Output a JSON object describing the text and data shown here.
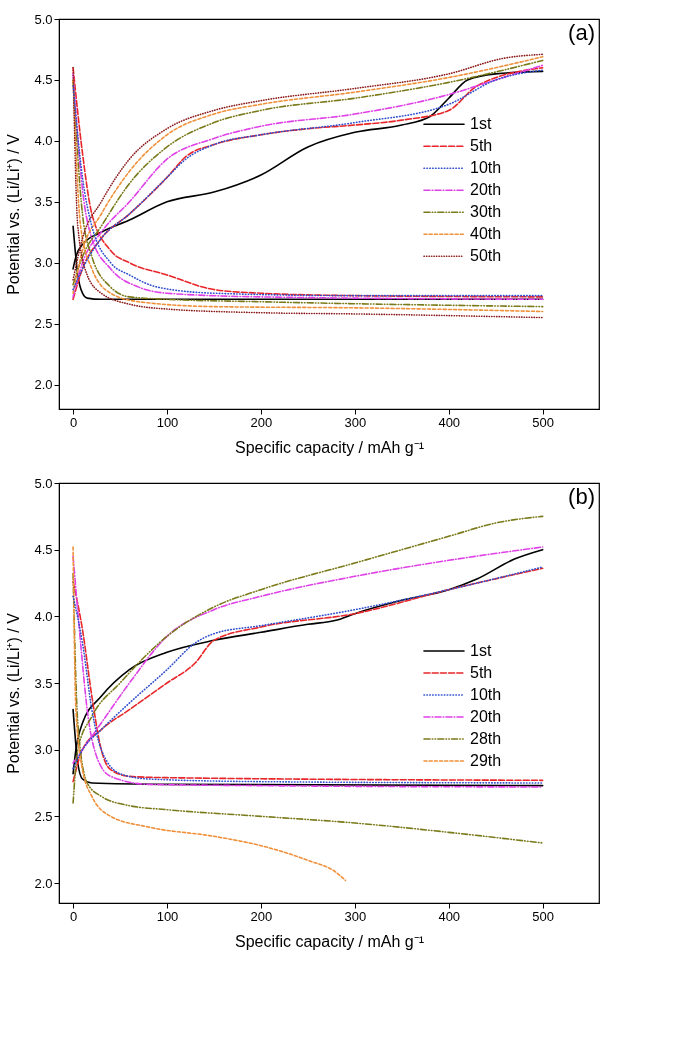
{
  "chart_data": [
    {
      "type": "line",
      "xlabel": "Specific capacity / mAh g⁻¹",
      "ylabel": "Potential vs. (Li/Li⁺) / V",
      "annotations": [
        "(a)"
      ],
      "xlim": [
        -15,
        560
      ],
      "ylim": [
        1.8,
        5.0
      ],
      "xticks": [
        0,
        100,
        200,
        300,
        400,
        500
      ],
      "yticks": [
        {
          "value": 2,
          "label": "2.0"
        },
        2.5,
        {
          "value": 3,
          "label": "3.0"
        },
        3.5,
        {
          "value": 4,
          "label": "4.0"
        },
        4.5,
        {
          "value": 5,
          "label": "5.0"
        }
      ],
      "grid": false,
      "legend": "right",
      "series": [
        {
          "name": "1st",
          "color": "#000000",
          "line_style": "solid",
          "x": [
            0,
            5,
            10,
            15,
            30,
            100,
            500
          ],
          "values": [
            3.3,
            2.9,
            2.75,
            2.71,
            2.7,
            2.7,
            2.7
          ]
        },
        {
          "color": "#000000",
          "line_style": "solid",
          "x": [
            0,
            3,
            10,
            30,
            60,
            100,
            150,
            200,
            250,
            300,
            350,
            380,
            400,
            420,
            450,
            500
          ],
          "values": [
            2.95,
            3.05,
            3.15,
            3.25,
            3.35,
            3.5,
            3.58,
            3.72,
            3.95,
            4.07,
            4.13,
            4.2,
            4.35,
            4.5,
            4.55,
            4.57
          ]
        },
        {
          "name": "5th",
          "color": "#e8262a",
          "line_style": "dashed",
          "x": [
            0,
            10,
            20,
            40,
            60,
            100,
            150,
            200,
            300,
            500
          ],
          "values": [
            4.6,
            3.9,
            3.4,
            3.1,
            3.0,
            2.9,
            2.78,
            2.75,
            2.73,
            2.72
          ]
        },
        {
          "color": "#e8262a",
          "line_style": "dashed",
          "x": [
            0,
            10,
            30,
            60,
            100,
            120,
            150,
            200,
            250,
            300,
            350,
            400,
            430,
            500
          ],
          "values": [
            2.7,
            2.95,
            3.2,
            3.4,
            3.7,
            3.87,
            3.97,
            4.05,
            4.1,
            4.13,
            4.17,
            4.25,
            4.45,
            4.6
          ]
        },
        {
          "name": "10th",
          "color": "#2f4fcf",
          "line_style": "dotted",
          "x": [
            0,
            10,
            20,
            40,
            60,
            90,
            150,
            300,
            500
          ],
          "values": [
            4.45,
            3.7,
            3.3,
            3.0,
            2.9,
            2.8,
            2.75,
            2.73,
            2.73
          ]
        },
        {
          "color": "#2f4fcf",
          "line_style": "dotted",
          "x": [
            0,
            10,
            30,
            60,
            100,
            120,
            150,
            200,
            300,
            400,
            450,
            500
          ],
          "values": [
            2.78,
            2.95,
            3.2,
            3.4,
            3.7,
            3.85,
            3.97,
            4.05,
            4.15,
            4.3,
            4.5,
            4.58
          ]
        },
        {
          "name": "20th",
          "color": "#e040e8",
          "line_style": "dashdot",
          "x": [
            0,
            10,
            20,
            40,
            70,
            100,
            200,
            500
          ],
          "values": [
            4.55,
            3.6,
            3.2,
            2.95,
            2.8,
            2.75,
            2.72,
            2.7
          ]
        },
        {
          "color": "#e040e8",
          "line_style": "dashdot",
          "x": [
            0,
            10,
            30,
            60,
            100,
            150,
            200,
            300,
            400,
            450,
            500
          ],
          "values": [
            2.72,
            3.0,
            3.25,
            3.5,
            3.85,
            4.02,
            4.12,
            4.22,
            4.38,
            4.5,
            4.62
          ]
        },
        {
          "name": "30th",
          "color": "#7a7a1a",
          "line_style": "dashdotdot",
          "x": [
            0,
            10,
            20,
            40,
            60,
            100,
            200,
            500
          ],
          "values": [
            4.5,
            3.4,
            3.05,
            2.8,
            2.72,
            2.7,
            2.68,
            2.64
          ]
        },
        {
          "color": "#7a7a1a",
          "line_style": "dashdotdot",
          "x": [
            0,
            10,
            30,
            60,
            100,
            150,
            200,
            300,
            400,
            500
          ],
          "values": [
            2.82,
            3.05,
            3.3,
            3.65,
            3.95,
            4.15,
            4.25,
            4.35,
            4.48,
            4.66
          ]
        },
        {
          "name": "40th",
          "color": "#f0903a",
          "line_style": "shortdash",
          "x": [
            0,
            8,
            20,
            40,
            70,
            150,
            300,
            500
          ],
          "values": [
            4.5,
            3.3,
            2.95,
            2.75,
            2.68,
            2.64,
            2.63,
            2.6
          ]
        },
        {
          "color": "#f0903a",
          "line_style": "shortdash",
          "x": [
            0,
            10,
            30,
            60,
            100,
            150,
            200,
            300,
            400,
            500
          ],
          "values": [
            2.75,
            3.1,
            3.4,
            3.75,
            4.05,
            4.22,
            4.3,
            4.4,
            4.52,
            4.69
          ]
        },
        {
          "name": "50th",
          "color": "#8b1a1a",
          "line_style": "densedot",
          "x": [
            0,
            5,
            15,
            30,
            60,
            100,
            200,
            300,
            500
          ],
          "values": [
            4.6,
            3.3,
            2.9,
            2.75,
            2.66,
            2.62,
            2.59,
            2.58,
            2.55
          ]
        },
        {
          "color": "#8b1a1a",
          "line_style": "densedot",
          "x": [
            0,
            10,
            30,
            60,
            100,
            150,
            200,
            300,
            400,
            460,
            500
          ],
          "values": [
            2.86,
            3.2,
            3.5,
            3.85,
            4.1,
            4.25,
            4.33,
            4.43,
            4.55,
            4.68,
            4.71
          ]
        }
      ]
    },
    {
      "type": "line",
      "xlabel": "Specific capacity / mAh g⁻¹",
      "ylabel": "Potential vs. (Li/Li⁺) / V",
      "annotations": [
        "(b)"
      ],
      "xlim": [
        -15,
        560
      ],
      "ylim": [
        1.85,
        5.0
      ],
      "xticks": [
        0,
        100,
        200,
        300,
        400,
        500
      ],
      "yticks": [
        {
          "value": 2,
          "label": "2.0"
        },
        2.5,
        {
          "value": 3,
          "label": "3.0"
        },
        3.5,
        {
          "value": 4,
          "label": "4.0"
        },
        4.5,
        {
          "value": 5,
          "label": "5.0"
        }
      ],
      "grid": false,
      "legend": "right",
      "series": [
        {
          "name": "1st",
          "color": "#000000",
          "line_style": "solid",
          "x": [
            0,
            5,
            10,
            20,
            100,
            500
          ],
          "values": [
            3.3,
            2.9,
            2.78,
            2.75,
            2.74,
            2.73
          ]
        },
        {
          "color": "#000000",
          "line_style": "solid",
          "x": [
            0,
            3,
            10,
            30,
            60,
            100,
            150,
            200,
            250,
            280,
            300,
            350,
            400,
            430,
            470,
            500
          ],
          "values": [
            2.82,
            3.0,
            3.2,
            3.4,
            3.6,
            3.73,
            3.82,
            3.88,
            3.94,
            3.97,
            4.02,
            4.12,
            4.2,
            4.28,
            4.43,
            4.5
          ]
        },
        {
          "name": "5th",
          "color": "#e8262a",
          "line_style": "dashed",
          "x": [
            0,
            10,
            20,
            30,
            40,
            60,
            100,
            500
          ],
          "values": [
            4.26,
            3.9,
            3.4,
            3.0,
            2.85,
            2.8,
            2.79,
            2.77
          ]
        },
        {
          "color": "#e8262a",
          "line_style": "dashed",
          "x": [
            0,
            10,
            30,
            60,
            100,
            130,
            150,
            200,
            300,
            400,
            500
          ],
          "values": [
            2.76,
            3.0,
            3.15,
            3.3,
            3.5,
            3.65,
            3.82,
            3.92,
            4.02,
            4.2,
            4.36
          ]
        },
        {
          "name": "10th",
          "color": "#2f4fcf",
          "line_style": "dotted",
          "x": [
            0,
            10,
            20,
            30,
            50,
            80,
            200,
            500
          ],
          "values": [
            4.15,
            3.8,
            3.3,
            3.0,
            2.82,
            2.78,
            2.76,
            2.75
          ]
        },
        {
          "color": "#2f4fcf",
          "line_style": "dotted",
          "x": [
            0,
            10,
            30,
            60,
            100,
            130,
            150,
            200,
            300,
            400,
            500
          ],
          "values": [
            2.86,
            3.0,
            3.15,
            3.35,
            3.6,
            3.8,
            3.87,
            3.93,
            4.05,
            4.2,
            4.37
          ]
        },
        {
          "name": "20th",
          "color": "#e040e8",
          "line_style": "dashdot",
          "x": [
            0,
            8,
            15,
            25,
            40,
            80,
            200,
            500
          ],
          "values": [
            4.45,
            3.8,
            3.3,
            2.95,
            2.8,
            2.74,
            2.73,
            2.72
          ]
        },
        {
          "color": "#e040e8",
          "line_style": "dashdot",
          "x": [
            0,
            10,
            30,
            60,
            100,
            150,
            200,
            300,
            400,
            500
          ],
          "values": [
            2.9,
            3.0,
            3.2,
            3.5,
            3.85,
            4.05,
            4.15,
            4.3,
            4.42,
            4.52
          ]
        },
        {
          "name": "28th",
          "color": "#7a7a1a",
          "line_style": "dashdotdot",
          "x": [
            0,
            5,
            15,
            30,
            60,
            100,
            200,
            300,
            400,
            500
          ],
          "values": [
            4.32,
            3.2,
            2.75,
            2.65,
            2.58,
            2.55,
            2.5,
            2.45,
            2.38,
            2.3
          ]
        },
        {
          "color": "#7a7a1a",
          "line_style": "dashdotdot",
          "x": [
            0,
            5,
            20,
            50,
            100,
            150,
            200,
            300,
            400,
            450,
            500
          ],
          "values": [
            2.6,
            3.0,
            3.25,
            3.5,
            3.85,
            4.07,
            4.2,
            4.4,
            4.6,
            4.7,
            4.75
          ]
        },
        {
          "name": "29th",
          "color": "#f0903a",
          "line_style": "shortdash",
          "x": [
            0,
            3,
            10,
            20,
            40,
            80,
            150,
            200,
            250,
            280,
            290
          ],
          "values": [
            4.52,
            3.3,
            2.85,
            2.65,
            2.5,
            2.42,
            2.35,
            2.28,
            2.17,
            2.08,
            2.02
          ]
        }
      ]
    }
  ]
}
